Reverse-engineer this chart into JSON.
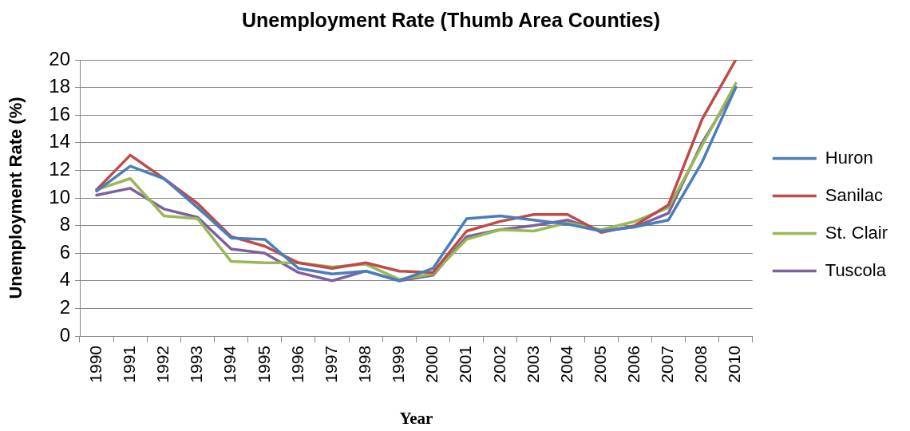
{
  "chart_data": {
    "type": "line",
    "title": "Unemployment Rate (Thumb Area Counties)",
    "xlabel": "Year",
    "ylabel": "Unemployment Rate (%)",
    "categories": [
      "1990",
      "1991",
      "1992",
      "1993",
      "1994",
      "1995",
      "1996",
      "1997",
      "1998",
      "1999",
      "2000",
      "2001",
      "2002",
      "2003",
      "2004",
      "2005",
      "2006",
      "2007",
      "2008",
      "2010"
    ],
    "series": [
      {
        "name": "Huron",
        "color": "#4a7ebb",
        "values": [
          10.5,
          12.3,
          11.4,
          9.3,
          7.1,
          7.0,
          4.9,
          4.5,
          4.7,
          4.0,
          4.9,
          8.5,
          8.7,
          8.4,
          8.1,
          7.6,
          7.9,
          8.4,
          12.6,
          18.0
        ]
      },
      {
        "name": "Sanilac",
        "color": "#be4b48",
        "values": [
          10.6,
          13.1,
          11.4,
          9.6,
          7.2,
          6.5,
          5.3,
          4.9,
          5.3,
          4.7,
          4.6,
          7.6,
          8.3,
          8.8,
          8.8,
          7.5,
          8.0,
          9.5,
          15.7,
          20.0
        ]
      },
      {
        "name": "St. Clair",
        "color": "#98b954",
        "values": [
          10.6,
          11.4,
          8.7,
          8.5,
          5.4,
          5.3,
          5.3,
          5.0,
          5.2,
          4.1,
          4.5,
          7.0,
          7.7,
          7.6,
          8.2,
          7.7,
          8.3,
          9.3,
          13.8,
          18.3
        ]
      },
      {
        "name": "Tuscola",
        "color": "#7d60a0",
        "values": [
          10.2,
          10.7,
          9.2,
          8.6,
          6.3,
          6.0,
          4.6,
          4.0,
          4.7,
          4.0,
          4.4,
          7.2,
          7.7,
          8.0,
          8.4,
          7.6,
          7.9,
          8.9,
          14.0,
          18.0
        ]
      }
    ],
    "ylim": [
      0,
      20
    ],
    "yticks": [
      0,
      2,
      4,
      6,
      8,
      10,
      12,
      14,
      16,
      18,
      20
    ],
    "grid": "y",
    "legend": "right"
  }
}
